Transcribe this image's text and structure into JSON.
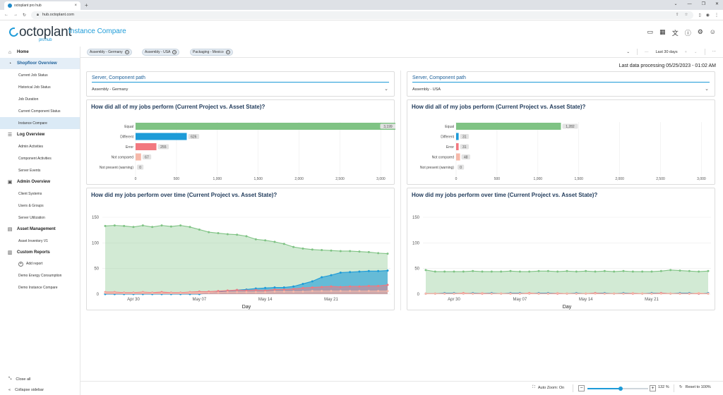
{
  "browser": {
    "tab_title": "octoplant pro hub",
    "new_tab": "+",
    "url": "hub.octoplant.com",
    "window_controls": [
      "⌄",
      "—",
      "❐",
      "✕"
    ]
  },
  "app": {
    "logo_text": "octoplant",
    "logo_sub": "pro hub",
    "page_title": "Instance Compare",
    "header_icons": [
      "monitor-icon",
      "grid-icon",
      "translate-icon",
      "help-icon",
      "settings-icon",
      "user-icon"
    ]
  },
  "sidebar": {
    "home": "Home",
    "shopfloor": {
      "label": "Shopfloor Overview",
      "items": [
        "Current Job Status",
        "Historical Job Status",
        "Job Duration",
        "Current Component Status",
        "Instance Compare"
      ]
    },
    "log": {
      "label": "Log Overview",
      "items": [
        "Admin Activities",
        "Component Activities",
        "Server Events"
      ]
    },
    "admin": {
      "label": "Admin Overview",
      "items": [
        "Client Systems",
        "Users & Groups",
        "Server Utilization"
      ]
    },
    "asset": {
      "label": "Asset Management",
      "items": [
        "Asset Inventory V1"
      ]
    },
    "custom": {
      "label": "Custom Reports",
      "add": "Add report",
      "items": [
        "Demo Energy Consumption",
        "Demo Instance Compare"
      ]
    },
    "close_all": "Close all",
    "collapse": "Collapse sidebar"
  },
  "filters": {
    "chips": [
      "Assembly - Germany",
      "Assembly - USA",
      "Packaging - Mexico"
    ],
    "range": "Last 30 days"
  },
  "last_processing": "Last data processing 05/25/2023 - 01:02 AM",
  "left": {
    "select_label": "Server, Component path",
    "select_value": "Assembly - Germany",
    "bar_title": "How did all of my jobs perform (Current Project vs. Asset State)?",
    "line_title": "How did my jobs perform over time (Current Project vs. Asset State)?"
  },
  "right": {
    "select_label": "Server, Component path",
    "select_value": "Assembly - USA",
    "bar_title": "How did all of my jobs perform (Current Project vs. Asset State)?",
    "line_title": "How did my jobs perform over time (Current Project vs. Asset State)?"
  },
  "bottom": {
    "auto_zoom": "Auto Zoom: On",
    "zoom": "132 %",
    "zoom_fraction": 0.55,
    "reset": "Reset to 100%"
  },
  "colors": {
    "equal": "#7fc384",
    "different": "#1d9bd8",
    "error": "#f2787f",
    "not_compared": "#f6b8a9",
    "accent": "#1d9bd8"
  },
  "chart_data": [
    {
      "type": "bar",
      "orientation": "horizontal",
      "title": "How did all of my jobs perform (Current Project vs. Asset State)?",
      "categories": [
        "Equal",
        "Different",
        "Error",
        "Not compared",
        "Not present (warning)"
      ],
      "values": [
        3199,
        626,
        255,
        67,
        0
      ],
      "labels": [
        "3,199",
        "626",
        "255",
        "67",
        "0"
      ],
      "xlim": [
        0,
        3100
      ],
      "xticks": [
        0,
        500,
        1000,
        1500,
        2000,
        2500,
        3000
      ],
      "xtick_labels": [
        "0",
        "500",
        "1,000",
        "1,500",
        "2,000",
        "2,500",
        "3,000"
      ]
    },
    {
      "type": "area",
      "title": "How did my jobs perform over time (Current Project vs. Asset State)?",
      "xlabel": "Day",
      "x_tick_labels": [
        "Apr 30",
        "May 07",
        "May 14",
        "May 21"
      ],
      "x_tick_index": [
        3,
        10,
        17,
        24
      ],
      "ylim": [
        0,
        150
      ],
      "yticks": [
        0,
        50,
        100,
        150
      ],
      "series": [
        {
          "key": "equal",
          "values": [
            133,
            134,
            133,
            131,
            134,
            131,
            134,
            132,
            134,
            131,
            126,
            121,
            119,
            117,
            116,
            113,
            107,
            105,
            102,
            98,
            92,
            89,
            87,
            86,
            85,
            84,
            84,
            83,
            82,
            80,
            79
          ]
        },
        {
          "key": "different",
          "values": [
            0,
            0,
            0,
            0,
            0,
            0,
            0,
            0,
            0,
            0,
            0,
            2,
            4,
            6,
            8,
            9,
            11,
            12,
            13,
            13,
            15,
            20,
            25,
            33,
            37,
            42,
            43,
            44,
            45,
            45,
            46
          ]
        },
        {
          "key": "error",
          "values": [
            4,
            4,
            3,
            3,
            4,
            3,
            4,
            3,
            3,
            4,
            5,
            5,
            6,
            7,
            8,
            7,
            8,
            7,
            9,
            9,
            10,
            12,
            13,
            14,
            15,
            14,
            15,
            15,
            16,
            16,
            18
          ]
        },
        {
          "key": "not_compared",
          "values": [
            3,
            3,
            2,
            2,
            3,
            2,
            2,
            2,
            2,
            3,
            3,
            3,
            3,
            4,
            4,
            4,
            4,
            4,
            5,
            5,
            5,
            5,
            6,
            6,
            6,
            6,
            6,
            6,
            6,
            6,
            6
          ]
        }
      ]
    },
    {
      "type": "bar",
      "orientation": "horizontal",
      "title": "How did all of my jobs perform (Current Project vs. Asset State)?",
      "categories": [
        "Equal",
        "Different",
        "Error",
        "Not compared",
        "Not present (warning)"
      ],
      "values": [
        1282,
        31,
        31,
        48,
        0
      ],
      "labels": [
        "1,282",
        "31",
        "31",
        "48",
        "0"
      ],
      "xlim": [
        0,
        3100
      ],
      "xticks": [
        0,
        500,
        1000,
        1500,
        2000,
        2500,
        3000
      ],
      "xtick_labels": [
        "0",
        "500",
        "1,000",
        "1,500",
        "2,000",
        "2,500",
        "3,000"
      ]
    },
    {
      "type": "area",
      "title": "How did my jobs perform over time (Current Project vs. Asset State)?",
      "xlabel": "Day",
      "x_tick_labels": [
        "Apr 30",
        "May 07",
        "May 14",
        "May 21"
      ],
      "x_tick_index": [
        3,
        10,
        17,
        24
      ],
      "ylim": [
        0,
        150
      ],
      "yticks": [
        0,
        50,
        100,
        150
      ],
      "series": [
        {
          "key": "equal",
          "values": [
            47,
            44,
            44,
            44,
            44,
            45,
            44,
            44,
            44,
            45,
            44,
            44,
            45,
            45,
            44,
            45,
            44,
            45,
            44,
            45,
            44,
            45,
            44,
            44,
            44,
            45,
            47,
            46,
            45,
            44,
            45
          ]
        },
        {
          "key": "different",
          "values": [
            1,
            1,
            2,
            2,
            1,
            2,
            2,
            2,
            1,
            2,
            2,
            1,
            2,
            2,
            2,
            1,
            2,
            1,
            2,
            2,
            1,
            2,
            2,
            1,
            2,
            2,
            1,
            2,
            2,
            1,
            2
          ]
        },
        {
          "key": "error",
          "values": [
            1,
            1,
            1,
            1,
            2,
            1,
            1,
            1,
            1,
            1,
            1,
            2,
            1,
            1,
            1,
            1,
            1,
            1,
            2,
            1,
            1,
            1,
            1,
            1,
            1,
            2,
            1,
            1,
            1,
            1,
            1
          ]
        },
        {
          "key": "not_compared",
          "values": [
            1,
            1,
            1,
            1,
            1,
            1,
            2,
            1,
            1,
            1,
            1,
            1,
            1,
            1,
            2,
            1,
            1,
            1,
            1,
            1,
            1,
            1,
            2,
            1,
            1,
            1,
            1,
            1,
            1,
            2,
            1
          ]
        }
      ]
    }
  ]
}
